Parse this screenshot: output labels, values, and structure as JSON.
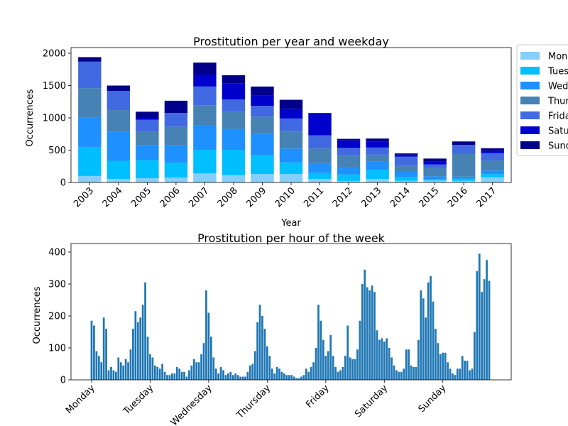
{
  "chart_data": [
    {
      "type": "bar",
      "stacked": true,
      "title": "Prostitution per year and weekday",
      "xlabel": "Year",
      "ylabel": "Occurrences",
      "ylim": [
        0,
        2000
      ],
      "yticks": [
        0,
        500,
        1000,
        1500,
        2000
      ],
      "grid": false,
      "legend": "outside-right",
      "categories": [
        "2003",
        "2004",
        "2005",
        "2006",
        "2007",
        "2008",
        "2009",
        "2010",
        "2011",
        "2012",
        "2013",
        "2014",
        "2015",
        "2016",
        "2017"
      ],
      "series": [
        {
          "name": "Monday",
          "label_visible": "Mon",
          "color": "#87CEFA",
          "values": [
            100,
            55,
            65,
            75,
            140,
            115,
            130,
            130,
            55,
            20,
            55,
            25,
            30,
            25,
            80
          ]
        },
        {
          "name": "Tuesday",
          "label_visible": "Tues",
          "color": "#00BFFF",
          "values": [
            450,
            280,
            280,
            230,
            365,
            390,
            290,
            180,
            95,
            105,
            140,
            60,
            25,
            35,
            50
          ]
        },
        {
          "name": "Wednesday",
          "label_visible": "Wed",
          "color": "#1E90FF",
          "values": [
            460,
            455,
            235,
            270,
            375,
            325,
            335,
            215,
            150,
            105,
            130,
            80,
            40,
            30,
            55
          ]
        },
        {
          "name": "Thursday",
          "label_visible": "Thur",
          "color": "#4682B4",
          "values": [
            450,
            330,
            210,
            290,
            315,
            270,
            265,
            275,
            225,
            185,
            105,
            95,
            130,
            350,
            155
          ]
        },
        {
          "name": "Friday",
          "label_visible": "Frida",
          "color": "#4169E1",
          "values": [
            410,
            295,
            180,
            210,
            290,
            185,
            165,
            190,
            205,
            120,
            110,
            140,
            55,
            140,
            115
          ]
        },
        {
          "name": "Saturday",
          "label_visible": "Satu",
          "color": "#0000CD",
          "values": [
            0,
            0,
            30,
            0,
            185,
            250,
            160,
            150,
            330,
            115,
            90,
            30,
            40,
            0,
            35
          ]
        },
        {
          "name": "Sunday",
          "label_visible": "Sund",
          "color": "#00008B",
          "values": [
            70,
            85,
            95,
            190,
            185,
            125,
            140,
            140,
            15,
            25,
            50,
            20,
            50,
            55,
            40
          ]
        }
      ]
    },
    {
      "type": "bar",
      "title": "Prostitution per hour of the week",
      "xlabel": "",
      "ylabel": "Occurrences",
      "ylim": [
        0,
        400
      ],
      "yticks": [
        0,
        100,
        200,
        300,
        400
      ],
      "xticks": [
        "Monday",
        "Tuesday",
        "Wednesday",
        "Thursday",
        "Friday",
        "Saturday",
        "Sunday"
      ],
      "grid": false,
      "color": "#1f77b4",
      "values": [
        185,
        170,
        90,
        75,
        55,
        195,
        160,
        30,
        40,
        30,
        25,
        70,
        55,
        45,
        65,
        55,
        95,
        160,
        215,
        180,
        195,
        235,
        305,
        135,
        80,
        70,
        45,
        40,
        35,
        50,
        25,
        15,
        15,
        20,
        20,
        40,
        35,
        25,
        25,
        10,
        30,
        45,
        65,
        55,
        55,
        80,
        115,
        280,
        210,
        135,
        70,
        35,
        20,
        40,
        30,
        15,
        20,
        25,
        15,
        20,
        15,
        10,
        10,
        10,
        25,
        45,
        50,
        90,
        180,
        235,
        200,
        160,
        105,
        75,
        35,
        20,
        40,
        35,
        25,
        20,
        15,
        15,
        15,
        10,
        5,
        5,
        10,
        15,
        35,
        25,
        40,
        55,
        100,
        235,
        185,
        125,
        75,
        90,
        140,
        75,
        40,
        25,
        30,
        40,
        75,
        170,
        70,
        65,
        65,
        95,
        185,
        300,
        345,
        290,
        280,
        295,
        275,
        155,
        125,
        130,
        120,
        130,
        100,
        70,
        45,
        30,
        25,
        25,
        35,
        95,
        95,
        45,
        40,
        40,
        125,
        280,
        255,
        195,
        305,
        325,
        245,
        160,
        115,
        80,
        85,
        85,
        55,
        35,
        20,
        15,
        35,
        35,
        75,
        60,
        60,
        30,
        35,
        150,
        340,
        395,
        275,
        315,
        375,
        310
      ]
    }
  ]
}
